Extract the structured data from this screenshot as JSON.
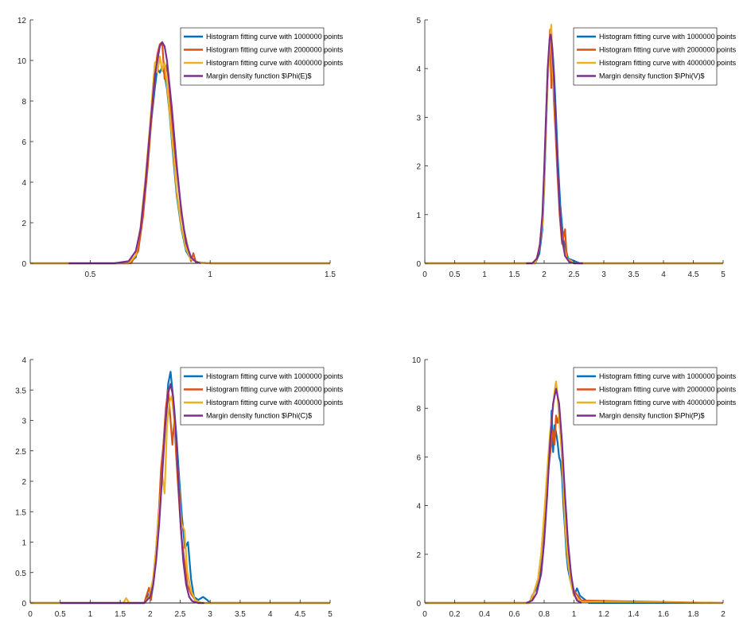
{
  "colors": {
    "s1000000": "#0072BD",
    "s2000000": "#D95319",
    "s4000000": "#EDB120",
    "margin": "#7E2F8E"
  },
  "chart_data": [
    {
      "type": "line",
      "id": "E",
      "xlim": [
        0.25,
        1.5
      ],
      "ylim": [
        0,
        12
      ],
      "xticks": [
        0.5,
        1,
        1.5
      ],
      "xtick_labels": [
        "0.5",
        "1",
        "1.5"
      ],
      "yticks": [
        0,
        2,
        4,
        6,
        8,
        10,
        12
      ],
      "ytick_labels": [
        "0",
        "2",
        "4",
        "6",
        "8",
        "10",
        "12"
      ],
      "legend": "top-right",
      "grid": false,
      "support": [
        0.65,
        0.95
      ],
      "series": [
        {
          "name": "Histogram fitting curve with 1000000 points",
          "color_key": "s1000000",
          "x": [
            0.25,
            0.4,
            0.55,
            0.66,
            0.69,
            0.71,
            0.73,
            0.75,
            0.77,
            0.78,
            0.79,
            0.8,
            0.81,
            0.82,
            0.83,
            0.84,
            0.85,
            0.86,
            0.88,
            0.9,
            0.92,
            0.95,
            1.0,
            1.5
          ],
          "y": [
            0,
            0,
            0,
            0,
            0.3,
            1.5,
            3.8,
            6.5,
            8.7,
            9.6,
            9.4,
            9.7,
            9.3,
            8.6,
            7.5,
            6.1,
            4.7,
            3.4,
            1.7,
            0.6,
            0.2,
            0.05,
            0,
            0
          ]
        },
        {
          "name": "Histogram fitting curve with 2000000 points",
          "color_key": "s2000000",
          "x": [
            0.25,
            0.55,
            0.67,
            0.7,
            0.72,
            0.74,
            0.76,
            0.77,
            0.78,
            0.79,
            0.8,
            0.81,
            0.82,
            0.83,
            0.84,
            0.85,
            0.87,
            0.89,
            0.91,
            0.92,
            0.93,
            0.94,
            1.0,
            1.5
          ],
          "y": [
            0,
            0,
            0,
            0.6,
            2.3,
            4.8,
            7.8,
            9.3,
            10.3,
            10.8,
            10.9,
            9.1,
            9.8,
            8.6,
            7.0,
            5.8,
            3.6,
            1.7,
            0.6,
            0.1,
            0.5,
            0.05,
            0,
            0
          ]
        },
        {
          "name": "Histogram fitting curve with 4000000 points",
          "color_key": "s4000000",
          "x": [
            0.25,
            0.55,
            0.66,
            0.69,
            0.71,
            0.73,
            0.75,
            0.76,
            0.77,
            0.78,
            0.79,
            0.8,
            0.81,
            0.82,
            0.83,
            0.84,
            0.85,
            0.86,
            0.88,
            0.9,
            0.92,
            0.95,
            1.0,
            1.5
          ],
          "y": [
            0,
            0,
            0,
            0.4,
            1.8,
            4.2,
            6.9,
            8.5,
            9.9,
            9.4,
            10.2,
            9.5,
            9.9,
            8.8,
            7.6,
            6.3,
            5.0,
            3.6,
            1.8,
            0.7,
            0.2,
            0.05,
            0,
            0
          ]
        },
        {
          "name": "Margin density function $\\Phi(E)$",
          "color_key": "margin",
          "x": [
            0.41,
            0.5,
            0.6,
            0.66,
            0.69,
            0.71,
            0.73,
            0.75,
            0.77,
            0.79,
            0.8,
            0.81,
            0.82,
            0.84,
            0.86,
            0.88,
            0.9,
            0.92,
            0.94,
            0.96
          ],
          "y": [
            0,
            0,
            0,
            0.1,
            0.6,
            1.7,
            3.9,
            6.7,
            9.3,
            10.7,
            10.9,
            10.7,
            10.0,
            7.7,
            4.9,
            2.5,
            1.0,
            0.3,
            0.08,
            0
          ]
        }
      ]
    },
    {
      "type": "line",
      "id": "V",
      "xlim": [
        0,
        5
      ],
      "ylim": [
        0,
        5
      ],
      "xticks": [
        0,
        0.5,
        1,
        1.5,
        2,
        2.5,
        3,
        3.5,
        4,
        4.5,
        5
      ],
      "xtick_labels": [
        "0",
        "0.5",
        "1",
        "1.5",
        "2",
        "2.5",
        "3",
        "3.5",
        "4",
        "4.5",
        "5"
      ],
      "yticks": [
        0,
        1,
        2,
        3,
        4,
        5
      ],
      "ytick_labels": [
        "0",
        "1",
        "2",
        "3",
        "4",
        "5"
      ],
      "legend": "top-right",
      "grid": false,
      "support": [
        1.7,
        2.65
      ],
      "series": [
        {
          "name": "Histogram fitting curve with 1000000 points",
          "color_key": "s1000000",
          "x": [
            0,
            1.6,
            1.85,
            1.92,
            1.97,
            2.0,
            2.03,
            2.06,
            2.09,
            2.11,
            2.13,
            2.15,
            2.17,
            2.2,
            2.23,
            2.27,
            2.32,
            2.4,
            2.5,
            2.6,
            5
          ],
          "y": [
            0,
            0,
            0,
            0.2,
            0.7,
            1.5,
            2.7,
            3.8,
            4.4,
            4.6,
            4.5,
            4.2,
            3.8,
            3.0,
            2.1,
            1.2,
            0.5,
            0.1,
            0.05,
            0,
            0
          ]
        },
        {
          "name": "Histogram fitting curve with 2000000 points",
          "color_key": "s2000000",
          "x": [
            0,
            1.6,
            1.85,
            1.92,
            1.97,
            2.0,
            2.03,
            2.06,
            2.08,
            2.1,
            2.12,
            2.14,
            2.16,
            2.19,
            2.22,
            2.26,
            2.3,
            2.35,
            2.38,
            2.42,
            2.5,
            5
          ],
          "y": [
            0,
            0,
            0,
            0.3,
            0.9,
            1.8,
            2.9,
            4.0,
            4.3,
            4.8,
            3.6,
            4.4,
            3.4,
            2.7,
            1.9,
            1.0,
            0.4,
            0.7,
            0.1,
            0.05,
            0,
            0
          ]
        },
        {
          "name": "Histogram fitting curve with 4000000 points",
          "color_key": "s4000000",
          "x": [
            0,
            1.6,
            1.85,
            1.92,
            1.97,
            2.0,
            2.03,
            2.06,
            2.08,
            2.1,
            2.12,
            2.14,
            2.16,
            2.19,
            2.22,
            2.26,
            2.31,
            2.38,
            2.45,
            2.5,
            5
          ],
          "y": [
            0,
            0,
            0,
            0.3,
            0.8,
            1.6,
            2.8,
            3.8,
            4.1,
            4.6,
            4.9,
            4.0,
            3.6,
            2.9,
            2.0,
            1.1,
            0.4,
            0.1,
            0.05,
            0,
            0
          ]
        },
        {
          "name": "Margin density function $\\Phi(V)$",
          "color_key": "margin",
          "x": [
            1.7,
            1.8,
            1.88,
            1.93,
            1.97,
            2.0,
            2.03,
            2.06,
            2.09,
            2.11,
            2.13,
            2.16,
            2.19,
            2.22,
            2.26,
            2.3,
            2.35,
            2.42,
            2.5,
            2.65
          ],
          "y": [
            0,
            0,
            0.1,
            0.4,
            1.0,
            1.9,
            3.0,
            4.0,
            4.6,
            4.7,
            4.5,
            3.9,
            3.0,
            2.1,
            1.1,
            0.5,
            0.15,
            0.03,
            0,
            0
          ]
        }
      ]
    },
    {
      "type": "line",
      "id": "C",
      "xlim": [
        0,
        5
      ],
      "ylim": [
        0,
        4
      ],
      "xticks": [
        0,
        0.5,
        1,
        1.5,
        2,
        2.5,
        3,
        3.5,
        4,
        4.5,
        5
      ],
      "xtick_labels": [
        "0",
        "0.5",
        "1",
        "1.5",
        "2",
        "2.5",
        "3",
        "3.5",
        "4",
        "4.5",
        "5"
      ],
      "yticks": [
        0,
        0.5,
        1,
        1.5,
        2,
        2.5,
        3,
        3.5,
        4
      ],
      "ytick_labels": [
        "0",
        "0.5",
        "1",
        "1.5",
        "2",
        "2.5",
        "3",
        "3.5",
        "4"
      ],
      "legend": "top-right",
      "grid": false,
      "support": [
        0.5,
        2.9
      ],
      "series": [
        {
          "name": "Histogram fitting curve with 1000000 points",
          "color_key": "s1000000",
          "x": [
            0,
            1.5,
            1.9,
            1.98,
            2.01,
            2.05,
            2.1,
            2.15,
            2.2,
            2.25,
            2.3,
            2.34,
            2.37,
            2.4,
            2.44,
            2.48,
            2.53,
            2.58,
            2.63,
            2.68,
            2.73,
            2.8,
            2.88,
            2.95,
            3.0,
            5
          ],
          "y": [
            0,
            0,
            0,
            0.15,
            0.05,
            0.3,
            0.8,
            1.5,
            2.3,
            3.0,
            3.6,
            3.8,
            3.5,
            3.2,
            2.7,
            2.1,
            1.4,
            0.9,
            1.0,
            0.4,
            0.1,
            0.05,
            0.1,
            0.05,
            0,
            0
          ]
        },
        {
          "name": "Histogram fitting curve with 2000000 points",
          "color_key": "s2000000",
          "x": [
            0,
            1.5,
            1.9,
            1.98,
            2.01,
            2.05,
            2.1,
            2.15,
            2.18,
            2.22,
            2.26,
            2.3,
            2.34,
            2.37,
            2.4,
            2.44,
            2.48,
            2.52,
            2.57,
            2.62,
            2.68,
            2.75,
            2.85,
            5
          ],
          "y": [
            0,
            0,
            0,
            0.25,
            0.05,
            0.4,
            0.9,
            1.6,
            2.2,
            2.6,
            3.2,
            3.5,
            3.0,
            2.6,
            3.0,
            2.3,
            1.7,
            1.1,
            0.7,
            0.3,
            0.15,
            0.05,
            0,
            0
          ]
        },
        {
          "name": "Histogram fitting curve with 4000000 points",
          "color_key": "s4000000",
          "x": [
            0,
            1.55,
            1.6,
            1.65,
            1.9,
            1.98,
            2.05,
            2.1,
            2.15,
            2.2,
            2.24,
            2.28,
            2.32,
            2.36,
            2.4,
            2.44,
            2.48,
            2.52,
            2.57,
            2.62,
            2.68,
            2.75,
            2.85,
            5
          ],
          "y": [
            0,
            0,
            0.08,
            0,
            0,
            0.1,
            0.4,
            0.9,
            1.5,
            2.1,
            1.8,
            2.9,
            3.3,
            3.4,
            3.0,
            2.5,
            1.9,
            1.3,
            1.2,
            0.5,
            0.2,
            0.05,
            0,
            0
          ]
        },
        {
          "name": "Margin density function $\\Phi(C)$",
          "color_key": "margin",
          "x": [
            0.5,
            1.0,
            1.5,
            1.9,
            2.0,
            2.05,
            2.1,
            2.15,
            2.2,
            2.25,
            2.3,
            2.34,
            2.38,
            2.42,
            2.46,
            2.5,
            2.55,
            2.6,
            2.65,
            2.7,
            2.8,
            2.9
          ],
          "y": [
            0,
            0,
            0,
            0,
            0.1,
            0.3,
            0.7,
            1.3,
            2.1,
            2.9,
            3.45,
            3.6,
            3.4,
            2.9,
            2.2,
            1.4,
            0.7,
            0.3,
            0.1,
            0.03,
            0,
            0
          ]
        }
      ]
    },
    {
      "type": "line",
      "id": "P",
      "xlim": [
        0,
        2
      ],
      "ylim": [
        0,
        10
      ],
      "xticks": [
        0,
        0.2,
        0.4,
        0.6,
        0.8,
        1,
        1.2,
        1.4,
        1.6,
        1.8,
        2
      ],
      "xtick_labels": [
        "0",
        "0.2",
        "0.4",
        "0.6",
        "0.8",
        "1",
        "1.2",
        "1.4",
        "1.6",
        "1.8",
        "2"
      ],
      "yticks": [
        0,
        2,
        4,
        6,
        8,
        10
      ],
      "ytick_labels": [
        "0",
        "2",
        "4",
        "6",
        "8",
        "10"
      ],
      "legend": "top-right",
      "grid": false,
      "support": [
        0.68,
        1.05
      ],
      "series": [
        {
          "name": "Histogram fitting curve with 1000000 points",
          "color_key": "s1000000",
          "x": [
            0,
            0.6,
            0.7,
            0.72,
            0.74,
            0.76,
            0.78,
            0.8,
            0.82,
            0.84,
            0.85,
            0.86,
            0.87,
            0.88,
            0.89,
            0.9,
            0.91,
            0.92,
            0.93,
            0.94,
            0.95,
            0.96,
            0.98,
            1.0,
            1.02,
            1.04,
            1.06,
            1.1,
            2
          ],
          "y": [
            0,
            0,
            0,
            0.3,
            0.5,
            0.8,
            1.6,
            3.2,
            5.0,
            6.5,
            7.9,
            6.2,
            7.3,
            7.0,
            6.6,
            6.0,
            5.8,
            5.2,
            3.9,
            3.0,
            2.0,
            1.4,
            0.8,
            0.3,
            0.6,
            0.3,
            0.2,
            0,
            0
          ]
        },
        {
          "name": "Histogram fitting curve with 2000000 points",
          "color_key": "s2000000",
          "x": [
            0,
            0.6,
            0.7,
            0.72,
            0.74,
            0.76,
            0.78,
            0.8,
            0.82,
            0.84,
            0.86,
            0.87,
            0.88,
            0.89,
            0.9,
            0.91,
            0.92,
            0.93,
            0.94,
            0.95,
            0.96,
            0.97,
            1.0,
            1.05,
            2
          ],
          "y": [
            0,
            0,
            0,
            0.2,
            0.6,
            1.0,
            2.0,
            3.5,
            5.0,
            6.1,
            7.1,
            6.5,
            7.7,
            7.4,
            7.7,
            6.9,
            6.0,
            5.0,
            4.2,
            3.4,
            2.0,
            1.3,
            0.5,
            0.1,
            0
          ]
        },
        {
          "name": "Histogram fitting curve with 4000000 points",
          "color_key": "s4000000",
          "x": [
            0,
            0.6,
            0.7,
            0.73,
            0.76,
            0.78,
            0.8,
            0.82,
            0.84,
            0.86,
            0.87,
            0.88,
            0.89,
            0.9,
            0.91,
            0.92,
            0.93,
            0.94,
            0.95,
            0.96,
            0.98,
            1.0,
            1.05,
            2
          ],
          "y": [
            0,
            0,
            0,
            0.4,
            1.0,
            2.0,
            3.6,
            5.4,
            7.0,
            8.1,
            8.7,
            9.1,
            8.5,
            7.6,
            6.9,
            5.9,
            4.6,
            3.3,
            2.4,
            1.7,
            0.8,
            0.3,
            0.05,
            0
          ]
        },
        {
          "name": "Margin density function $\\Phi(P)$",
          "color_key": "margin",
          "x": [
            0.68,
            0.72,
            0.75,
            0.78,
            0.8,
            0.82,
            0.84,
            0.86,
            0.88,
            0.9,
            0.92,
            0.94,
            0.96,
            0.98,
            1.0,
            1.02,
            1.05
          ],
          "y": [
            0,
            0.1,
            0.4,
            1.2,
            2.5,
            4.4,
            6.6,
            8.2,
            8.8,
            8.2,
            6.6,
            4.4,
            2.5,
            1.2,
            0.4,
            0.1,
            0
          ]
        }
      ]
    }
  ]
}
